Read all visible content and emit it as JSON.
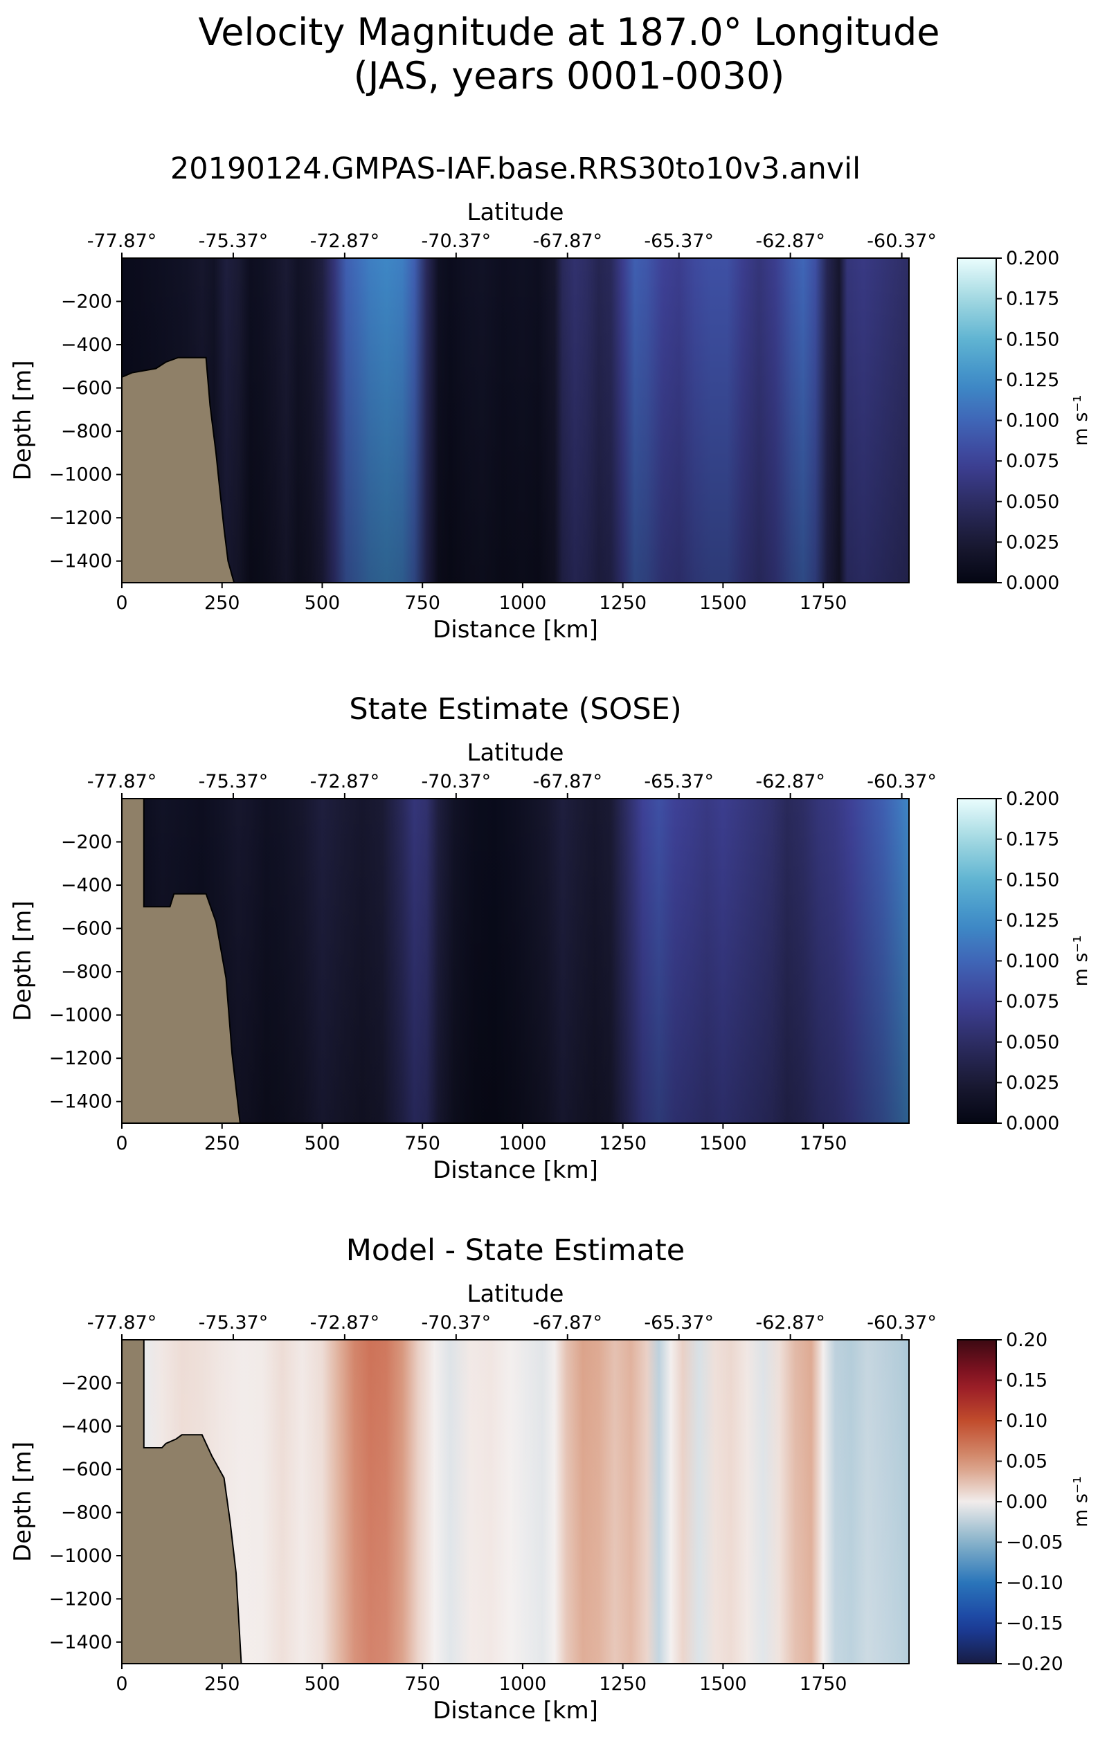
{
  "figure": {
    "suptitle_line1": "Velocity Magnitude at 187.0° Longitude",
    "suptitle_line2": "(JAS, years 0001-0030)"
  },
  "chart_data": [
    {
      "type": "heatmap",
      "title": "20190124.GMPAS-IAF.base.RRS30to10v3.anvil",
      "xlabel": "Distance [km]",
      "ylabel": "Depth [m]",
      "top_xlabel": "Latitude",
      "xlim": [
        0,
        1964
      ],
      "ylim": [
        -1500,
        0
      ],
      "xticks": [
        0,
        250,
        500,
        750,
        1000,
        1250,
        1500,
        1750
      ],
      "xticklabels": [
        "0",
        "250",
        "500",
        "750",
        "1000",
        "1250",
        "1500",
        "1750"
      ],
      "yticks": [
        -200,
        -400,
        -600,
        -800,
        -1000,
        -1200,
        -1400
      ],
      "yticklabels": [
        "−200",
        "−400",
        "−600",
        "−800",
        "−1000",
        "−1200",
        "−1400"
      ],
      "top_ticks_km": [
        0,
        278,
        556,
        834,
        1112,
        1390,
        1668,
        1946
      ],
      "top_ticklabels": [
        "-77.87°",
        "-75.37°",
        "-72.87°",
        "-70.37°",
        "-67.87°",
        "-65.37°",
        "-62.87°",
        "-60.37°"
      ],
      "colormap": "ice",
      "clim": [
        0.0,
        0.2
      ],
      "colorbar_label": "m s⁻¹",
      "colorbar_ticks": [
        "0.200",
        "0.175",
        "0.150",
        "0.125",
        "0.100",
        "0.075",
        "0.050",
        "0.025",
        "0.000"
      ],
      "units": "m s⁻¹",
      "land_color": "#8f8068",
      "bathymetry": [
        [
          0,
          -550
        ],
        [
          25,
          -530
        ],
        [
          85,
          -510
        ],
        [
          110,
          -480
        ],
        [
          140,
          -460
        ],
        [
          210,
          -460
        ],
        [
          220,
          -680
        ],
        [
          235,
          -900
        ],
        [
          245,
          -1080
        ],
        [
          255,
          -1250
        ],
        [
          265,
          -1400
        ],
        [
          280,
          -1500
        ],
        [
          290,
          -1500
        ]
      ],
      "profile": [
        [
          0,
          0.006
        ],
        [
          40,
          0.008
        ],
        [
          80,
          0.01
        ],
        [
          120,
          0.012
        ],
        [
          160,
          0.015
        ],
        [
          200,
          0.02
        ],
        [
          230,
          0.015
        ],
        [
          260,
          0.03
        ],
        [
          290,
          0.025
        ],
        [
          320,
          0.01
        ],
        [
          350,
          0.012
        ],
        [
          380,
          0.018
        ],
        [
          410,
          0.025
        ],
        [
          440,
          0.015
        ],
        [
          470,
          0.02
        ],
        [
          500,
          0.032
        ],
        [
          530,
          0.06
        ],
        [
          560,
          0.095
        ],
        [
          590,
          0.105
        ],
        [
          620,
          0.115
        ],
        [
          660,
          0.12
        ],
        [
          700,
          0.115
        ],
        [
          730,
          0.095
        ],
        [
          760,
          0.045
        ],
        [
          790,
          0.012
        ],
        [
          820,
          0.008
        ],
        [
          860,
          0.012
        ],
        [
          900,
          0.015
        ],
        [
          950,
          0.01
        ],
        [
          1000,
          0.012
        ],
        [
          1040,
          0.01
        ],
        [
          1080,
          0.02
        ],
        [
          1100,
          0.045
        ],
        [
          1130,
          0.055
        ],
        [
          1160,
          0.05
        ],
        [
          1190,
          0.04
        ],
        [
          1220,
          0.045
        ],
        [
          1250,
          0.07
        ],
        [
          1280,
          0.095
        ],
        [
          1310,
          0.09
        ],
        [
          1350,
          0.075
        ],
        [
          1390,
          0.07
        ],
        [
          1430,
          0.08
        ],
        [
          1470,
          0.085
        ],
        [
          1510,
          0.085
        ],
        [
          1550,
          0.07
        ],
        [
          1590,
          0.06
        ],
        [
          1630,
          0.07
        ],
        [
          1670,
          0.09
        ],
        [
          1700,
          0.1
        ],
        [
          1730,
          0.085
        ],
        [
          1760,
          0.04
        ],
        [
          1790,
          0.02
        ],
        [
          1810,
          0.06
        ],
        [
          1850,
          0.065
        ],
        [
          1890,
          0.06
        ],
        [
          1930,
          0.055
        ],
        [
          1964,
          0.05
        ]
      ]
    },
    {
      "type": "heatmap",
      "title": "State Estimate (SOSE)",
      "xlabel": "Distance [km]",
      "ylabel": "Depth [m]",
      "top_xlabel": "Latitude",
      "xlim": [
        0,
        1964
      ],
      "ylim": [
        -1500,
        0
      ],
      "xticks": [
        0,
        250,
        500,
        750,
        1000,
        1250,
        1500,
        1750
      ],
      "xticklabels": [
        "0",
        "250",
        "500",
        "750",
        "1000",
        "1250",
        "1500",
        "1750"
      ],
      "yticks": [
        -200,
        -400,
        -600,
        -800,
        -1000,
        -1200,
        -1400
      ],
      "yticklabels": [
        "−200",
        "−400",
        "−600",
        "−800",
        "−1000",
        "−1200",
        "−1400"
      ],
      "top_ticks_km": [
        0,
        278,
        556,
        834,
        1112,
        1390,
        1668,
        1946
      ],
      "top_ticklabels": [
        "-77.87°",
        "-75.37°",
        "-72.87°",
        "-70.37°",
        "-67.87°",
        "-65.37°",
        "-62.87°",
        "-60.37°"
      ],
      "colormap": "ice",
      "clim": [
        0.0,
        0.2
      ],
      "colorbar_label": "m s⁻¹",
      "colorbar_ticks": [
        "0.200",
        "0.175",
        "0.150",
        "0.125",
        "0.100",
        "0.075",
        "0.050",
        "0.025",
        "0.000"
      ],
      "units": "m s⁻¹",
      "land_color": "#8f8068",
      "bathymetry": [
        [
          0,
          0
        ],
        [
          55,
          0
        ],
        [
          55,
          -500
        ],
        [
          120,
          -500
        ],
        [
          130,
          -440
        ],
        [
          210,
          -440
        ],
        [
          235,
          -570
        ],
        [
          260,
          -830
        ],
        [
          275,
          -1180
        ],
        [
          295,
          -1500
        ]
      ],
      "profile": [
        [
          0,
          0.006
        ],
        [
          60,
          0.01
        ],
        [
          100,
          0.015
        ],
        [
          150,
          0.012
        ],
        [
          200,
          0.01
        ],
        [
          250,
          0.015
        ],
        [
          290,
          0.02
        ],
        [
          320,
          0.018
        ],
        [
          360,
          0.012
        ],
        [
          400,
          0.015
        ],
        [
          450,
          0.02
        ],
        [
          500,
          0.03
        ],
        [
          550,
          0.025
        ],
        [
          600,
          0.02
        ],
        [
          650,
          0.025
        ],
        [
          700,
          0.045
        ],
        [
          730,
          0.06
        ],
        [
          760,
          0.055
        ],
        [
          790,
          0.03
        ],
        [
          830,
          0.015
        ],
        [
          880,
          0.008
        ],
        [
          930,
          0.006
        ],
        [
          980,
          0.01
        ],
        [
          1020,
          0.015
        ],
        [
          1060,
          0.02
        ],
        [
          1100,
          0.03
        ],
        [
          1140,
          0.025
        ],
        [
          1180,
          0.02
        ],
        [
          1220,
          0.025
        ],
        [
          1260,
          0.05
        ],
        [
          1300,
          0.075
        ],
        [
          1340,
          0.085
        ],
        [
          1380,
          0.075
        ],
        [
          1420,
          0.07
        ],
        [
          1460,
          0.065
        ],
        [
          1500,
          0.07
        ],
        [
          1540,
          0.065
        ],
        [
          1580,
          0.06
        ],
        [
          1620,
          0.055
        ],
        [
          1660,
          0.045
        ],
        [
          1700,
          0.05
        ],
        [
          1740,
          0.06
        ],
        [
          1780,
          0.065
        ],
        [
          1820,
          0.075
        ],
        [
          1860,
          0.085
        ],
        [
          1900,
          0.095
        ],
        [
          1940,
          0.11
        ],
        [
          1964,
          0.12
        ]
      ]
    },
    {
      "type": "heatmap",
      "title": "Model - State Estimate",
      "xlabel": "Distance [km]",
      "ylabel": "Depth [m]",
      "top_xlabel": "Latitude",
      "xlim": [
        0,
        1964
      ],
      "ylim": [
        -1500,
        0
      ],
      "xticks": [
        0,
        250,
        500,
        750,
        1000,
        1250,
        1500,
        1750
      ],
      "xticklabels": [
        "0",
        "250",
        "500",
        "750",
        "1000",
        "1250",
        "1500",
        "1750"
      ],
      "yticks": [
        -200,
        -400,
        -600,
        -800,
        -1000,
        -1200,
        -1400
      ],
      "yticklabels": [
        "−200",
        "−400",
        "−600",
        "−800",
        "−1000",
        "−1200",
        "−1400"
      ],
      "top_ticks_km": [
        0,
        278,
        556,
        834,
        1112,
        1390,
        1668,
        1946
      ],
      "top_ticklabels": [
        "-77.87°",
        "-75.37°",
        "-72.87°",
        "-70.37°",
        "-67.87°",
        "-65.37°",
        "-62.87°",
        "-60.37°"
      ],
      "colormap": "balance",
      "clim": [
        -0.2,
        0.2
      ],
      "colorbar_label": "m s⁻¹",
      "colorbar_ticks": [
        "0.20",
        "0.15",
        "0.10",
        "0.05",
        "0.00",
        "−0.05",
        "−0.10",
        "−0.15",
        "−0.20"
      ],
      "units": "m s⁻¹",
      "land_color": "#8f8068",
      "bathymetry": [
        [
          0,
          0
        ],
        [
          55,
          0
        ],
        [
          55,
          -500
        ],
        [
          100,
          -500
        ],
        [
          110,
          -480
        ],
        [
          135,
          -460
        ],
        [
          150,
          -440
        ],
        [
          200,
          -440
        ],
        [
          225,
          -540
        ],
        [
          255,
          -640
        ],
        [
          270,
          -840
        ],
        [
          285,
          -1080
        ],
        [
          298,
          -1500
        ]
      ],
      "profile": [
        [
          0,
          -0.01
        ],
        [
          60,
          -0.005
        ],
        [
          100,
          0.005
        ],
        [
          150,
          0.012
        ],
        [
          200,
          0.01
        ],
        [
          250,
          0.005
        ],
        [
          300,
          0.002
        ],
        [
          350,
          0.003
        ],
        [
          400,
          0.012
        ],
        [
          450,
          0.004
        ],
        [
          500,
          0.012
        ],
        [
          540,
          0.04
        ],
        [
          580,
          0.075
        ],
        [
          620,
          0.09
        ],
        [
          660,
          0.085
        ],
        [
          700,
          0.06
        ],
        [
          740,
          0.02
        ],
        [
          780,
          0.0
        ],
        [
          820,
          -0.012
        ],
        [
          870,
          0.004
        ],
        [
          920,
          0.006
        ],
        [
          970,
          0.0
        ],
        [
          1010,
          -0.005
        ],
        [
          1050,
          -0.01
        ],
        [
          1080,
          0.0
        ],
        [
          1110,
          0.03
        ],
        [
          1150,
          0.05
        ],
        [
          1190,
          0.045
        ],
        [
          1230,
          0.03
        ],
        [
          1270,
          0.04
        ],
        [
          1310,
          0.02
        ],
        [
          1340,
          -0.03
        ],
        [
          1370,
          0.0
        ],
        [
          1400,
          0.02
        ],
        [
          1440,
          -0.015
        ],
        [
          1480,
          0.01
        ],
        [
          1520,
          0.015
        ],
        [
          1560,
          0.005
        ],
        [
          1600,
          -0.012
        ],
        [
          1640,
          0.01
        ],
        [
          1680,
          0.035
        ],
        [
          1720,
          0.045
        ],
        [
          1750,
          0.0
        ],
        [
          1780,
          -0.03
        ],
        [
          1820,
          -0.035
        ],
        [
          1860,
          -0.025
        ],
        [
          1900,
          -0.03
        ],
        [
          1940,
          -0.035
        ],
        [
          1964,
          -0.04
        ]
      ]
    }
  ]
}
